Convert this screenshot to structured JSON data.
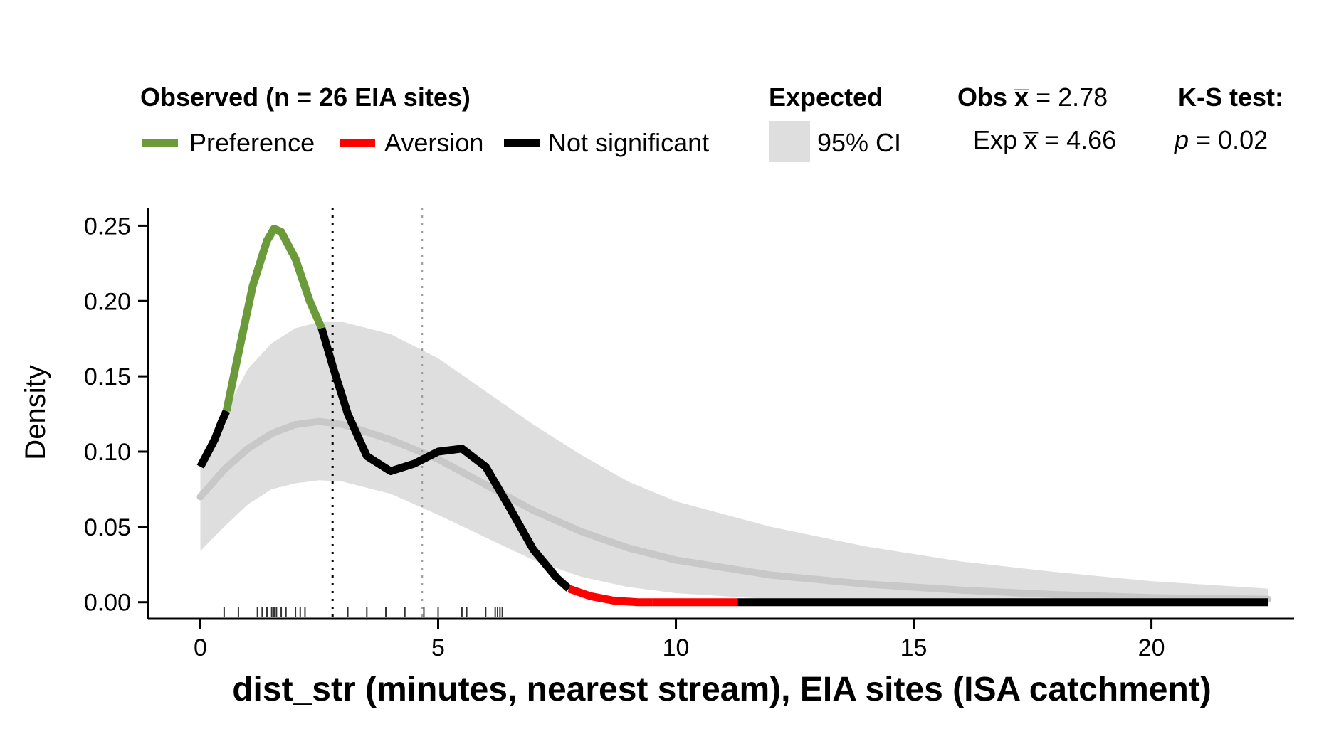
{
  "legend": {
    "observed_title": "Observed (n = 26 EIA sites)",
    "preference_label": "Preference",
    "aversion_label": "Aversion",
    "not_significant_label": "Not significant",
    "expected_title": "Expected",
    "ci_label": "95% CI",
    "obs_mean_prefix": "Obs",
    "obs_mean_symbol": "x̅",
    "obs_mean_value": "= 2.78",
    "exp_mean_prefix": "Exp",
    "exp_mean_symbol": "x̅",
    "exp_mean_value": "= 4.66",
    "ks_title": "K-S test:",
    "ks_p_symbol": "p",
    "ks_p_value": "= 0.02"
  },
  "colors": {
    "preference": "#6a9a3a",
    "aversion": "#ff0000",
    "not_significant": "#000000",
    "ci_fill": "#dedede",
    "expected_line": "#c8c8c8",
    "exp_mean_line": "#a0a0a0"
  },
  "chart_data": {
    "type": "line",
    "title": "",
    "xlabel": "dist_str (minutes, nearest stream), EIA sites (ISA catchment)",
    "ylabel": "Density",
    "xlim": [
      -1.1,
      23.0
    ],
    "ylim": [
      -0.011,
      0.262
    ],
    "x_ticks": [
      0,
      5,
      10,
      15,
      20
    ],
    "y_ticks": [
      0.0,
      0.05,
      0.1,
      0.15,
      0.2,
      0.25
    ],
    "y_tick_labels": [
      "0.00",
      "0.05",
      "0.10",
      "0.15",
      "0.20",
      "0.25"
    ],
    "grid": false,
    "legend_position": "top",
    "obs_mean": 2.78,
    "exp_mean": 4.66,
    "observed_segments": [
      {
        "class": "not_significant",
        "points": [
          [
            0,
            0.09
          ],
          [
            0.3,
            0.108
          ],
          [
            0.45,
            0.12
          ],
          [
            0.55,
            0.127
          ]
        ]
      },
      {
        "class": "preference",
        "points": [
          [
            0.55,
            0.127
          ],
          [
            0.8,
            0.165
          ],
          [
            1.1,
            0.21
          ],
          [
            1.4,
            0.24
          ],
          [
            1.55,
            0.248
          ],
          [
            1.7,
            0.246
          ],
          [
            2.0,
            0.228
          ],
          [
            2.3,
            0.2
          ],
          [
            2.55,
            0.182
          ]
        ]
      },
      {
        "class": "not_significant",
        "points": [
          [
            2.55,
            0.182
          ],
          [
            2.8,
            0.155
          ],
          [
            3.1,
            0.125
          ],
          [
            3.5,
            0.097
          ],
          [
            4.0,
            0.087
          ],
          [
            4.5,
            0.092
          ],
          [
            5.0,
            0.1
          ],
          [
            5.5,
            0.102
          ],
          [
            6.0,
            0.09
          ],
          [
            6.5,
            0.063
          ],
          [
            7.0,
            0.035
          ],
          [
            7.5,
            0.016
          ],
          [
            7.75,
            0.009
          ]
        ]
      },
      {
        "class": "aversion",
        "points": [
          [
            7.75,
            0.009
          ],
          [
            8.2,
            0.004
          ],
          [
            8.7,
            0.001
          ],
          [
            9.2,
            0.0
          ],
          [
            9.5,
            0.0
          ]
        ]
      },
      {
        "class": "aversion",
        "points": [
          [
            9.5,
            0.0
          ],
          [
            11.3,
            0.0
          ]
        ]
      },
      {
        "class": "not_significant",
        "points": [
          [
            11.3,
            0.0
          ],
          [
            22.45,
            0.0
          ]
        ]
      }
    ],
    "expected_mean_curve": [
      [
        0,
        0.07
      ],
      [
        0.5,
        0.088
      ],
      [
        1,
        0.102
      ],
      [
        1.5,
        0.112
      ],
      [
        2,
        0.118
      ],
      [
        2.5,
        0.12
      ],
      [
        3,
        0.118
      ],
      [
        4,
        0.108
      ],
      [
        5,
        0.095
      ],
      [
        6,
        0.078
      ],
      [
        7,
        0.061
      ],
      [
        8,
        0.047
      ],
      [
        9,
        0.036
      ],
      [
        10,
        0.028
      ],
      [
        12,
        0.018
      ],
      [
        14,
        0.012
      ],
      [
        16,
        0.008
      ],
      [
        18,
        0.005
      ],
      [
        20,
        0.003
      ],
      [
        22.45,
        0.002
      ]
    ],
    "expected_ci_upper": [
      [
        0,
        0.095
      ],
      [
        0.5,
        0.125
      ],
      [
        1,
        0.155
      ],
      [
        1.5,
        0.172
      ],
      [
        2,
        0.182
      ],
      [
        2.5,
        0.186
      ],
      [
        3,
        0.186
      ],
      [
        4,
        0.178
      ],
      [
        5,
        0.162
      ],
      [
        6,
        0.14
      ],
      [
        7,
        0.118
      ],
      [
        8,
        0.098
      ],
      [
        9,
        0.08
      ],
      [
        10,
        0.067
      ],
      [
        12,
        0.05
      ],
      [
        14,
        0.037
      ],
      [
        16,
        0.027
      ],
      [
        18,
        0.02
      ],
      [
        20,
        0.014
      ],
      [
        22.45,
        0.009
      ]
    ],
    "expected_ci_lower": [
      [
        0,
        0.034
      ],
      [
        0.5,
        0.05
      ],
      [
        1,
        0.065
      ],
      [
        1.5,
        0.075
      ],
      [
        2,
        0.079
      ],
      [
        2.5,
        0.081
      ],
      [
        3,
        0.08
      ],
      [
        4,
        0.072
      ],
      [
        5,
        0.058
      ],
      [
        6,
        0.043
      ],
      [
        7,
        0.028
      ],
      [
        8,
        0.017
      ],
      [
        9,
        0.01
      ],
      [
        10,
        0.006
      ],
      [
        12,
        0.002
      ],
      [
        14,
        0.001
      ],
      [
        16,
        0.0
      ],
      [
        18,
        0.0
      ],
      [
        20,
        0.0
      ],
      [
        22.45,
        0.0
      ]
    ],
    "rug": [
      0.5,
      0.8,
      1.2,
      1.3,
      1.4,
      1.5,
      1.55,
      1.6,
      1.7,
      1.8,
      2.0,
      2.1,
      2.2,
      3.1,
      3.5,
      3.9,
      4.3,
      4.7,
      5.0,
      5.5,
      5.6,
      6.0,
      6.2,
      6.25,
      6.3,
      6.35
    ]
  }
}
